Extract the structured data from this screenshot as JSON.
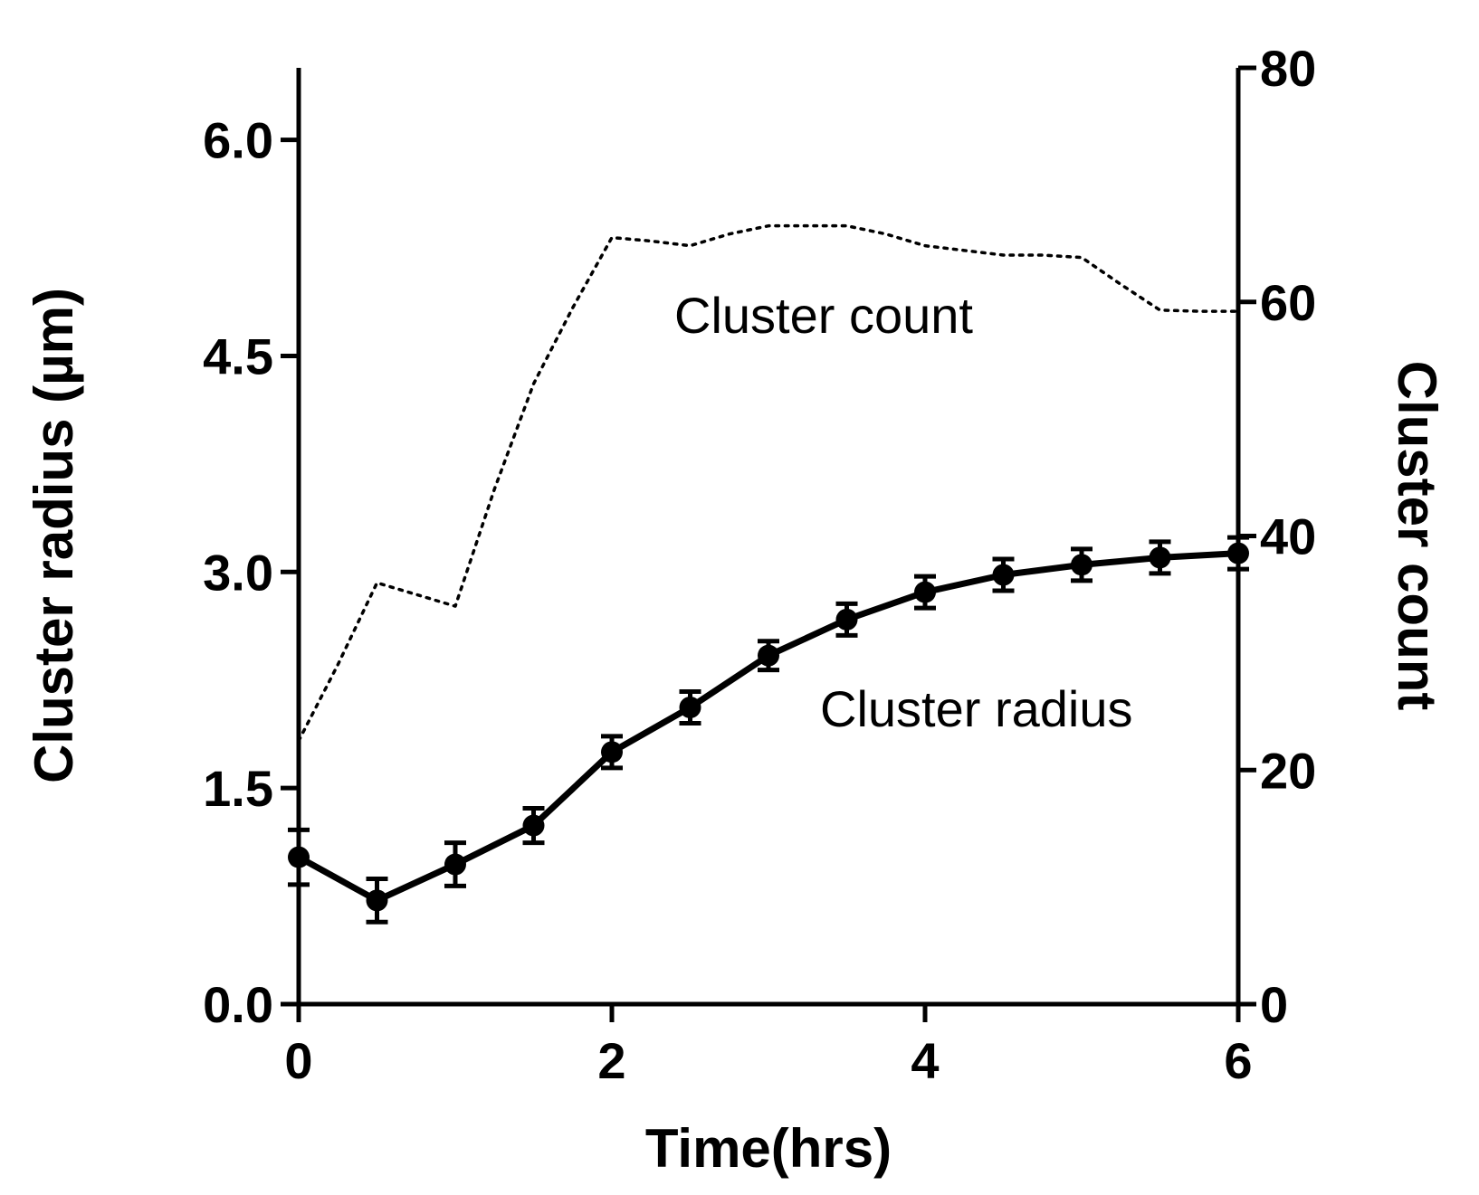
{
  "chart_data": {
    "type": "line",
    "x_axis": {
      "label": "Time(hrs)",
      "range": [
        0,
        6
      ],
      "ticks": [
        0,
        2,
        4,
        6
      ],
      "tick_labels": [
        "0",
        "2",
        "4",
        "6"
      ]
    },
    "y_axis_left": {
      "label": "Cluster radius (µm)",
      "range": [
        0,
        6.5
      ],
      "ticks": [
        0,
        1.5,
        3,
        4.5,
        6
      ],
      "tick_labels": [
        "0.0",
        "1.5",
        "3.0",
        "4.5",
        "6.0"
      ]
    },
    "y_axis_right": {
      "label": "Cluster count",
      "range": [
        0,
        80
      ],
      "ticks": [
        0,
        20,
        40,
        60,
        80
      ],
      "tick_labels": [
        "0",
        "20",
        "40",
        "60",
        "80"
      ]
    },
    "grid": false,
    "series": [
      {
        "name": "Cluster radius",
        "axis": "left",
        "style": "solid-with-markers-and-error-bars",
        "color": "#000000",
        "x": [
          0,
          0.5,
          1,
          1.5,
          2,
          2.5,
          3,
          3.5,
          4,
          4.5,
          5,
          5.5,
          6
        ],
        "values": [
          1.02,
          0.72,
          0.97,
          1.24,
          1.75,
          2.06,
          2.42,
          2.67,
          2.86,
          2.98,
          3.05,
          3.1,
          3.13
        ],
        "error": [
          0.19,
          0.15,
          0.15,
          0.12,
          0.11,
          0.11,
          0.1,
          0.11,
          0.11,
          0.11,
          0.11,
          0.11,
          0.11
        ]
      },
      {
        "name": "Cluster count",
        "axis": "right",
        "style": "dotted",
        "color": "#000000",
        "x": [
          0,
          0.25,
          0.5,
          0.75,
          1,
          1.25,
          1.5,
          1.75,
          2,
          2.25,
          2.5,
          2.75,
          3,
          3.25,
          3.5,
          3.75,
          4,
          4.25,
          4.5,
          4.75,
          5,
          5.25,
          5.5,
          5.75,
          6
        ],
        "values": [
          22.5,
          29,
          36,
          35,
          34,
          44,
          53,
          59.5,
          65.5,
          65.2,
          64.8,
          65.8,
          66.5,
          66.5,
          66.5,
          65.8,
          64.8,
          64.4,
          64.0,
          64.0,
          63.8,
          61.5,
          59.3,
          59.2,
          59.2
        ]
      }
    ],
    "annotations": [
      {
        "text": "Cluster count",
        "series": "Cluster count"
      },
      {
        "text": "Cluster radius",
        "series": "Cluster radius"
      }
    ]
  }
}
